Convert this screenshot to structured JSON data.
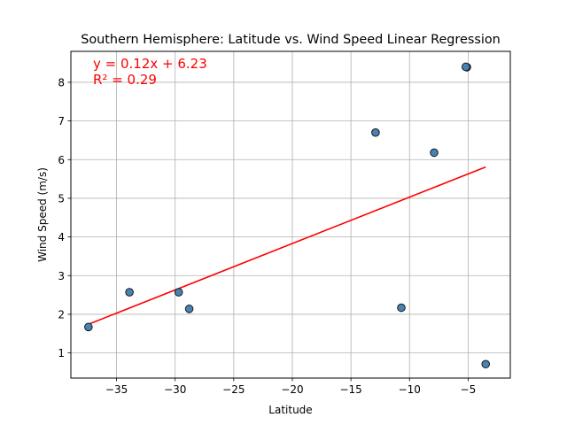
{
  "chart_data": {
    "type": "scatter",
    "title": "Southern Hemisphere: Latitude vs. Wind Speed Linear Regression",
    "xlabel": "Latitude",
    "ylabel": "Wind Speed (m/s)",
    "xlim": [
      -38.9,
      -1.4
    ],
    "ylim": [
      0.35,
      8.8
    ],
    "xticks": [
      -35,
      -30,
      -25,
      -20,
      -15,
      -10,
      -5
    ],
    "xtick_labels": [
      "−35",
      "−30",
      "−25",
      "−20",
      "−15",
      "−10",
      "−5"
    ],
    "yticks": [
      1,
      2,
      3,
      4,
      5,
      6,
      7,
      8
    ],
    "ytick_labels": [
      "1",
      "2",
      "3",
      "4",
      "5",
      "6",
      "7",
      "8"
    ],
    "grid": true,
    "points": [
      {
        "x": -37.4,
        "y": 1.67
      },
      {
        "x": -33.9,
        "y": 2.57
      },
      {
        "x": -29.7,
        "y": 2.57
      },
      {
        "x": -28.8,
        "y": 2.14
      },
      {
        "x": -12.9,
        "y": 6.7
      },
      {
        "x": -10.7,
        "y": 2.17
      },
      {
        "x": -7.9,
        "y": 6.18
      },
      {
        "x": -5.1,
        "y": 8.39
      },
      {
        "x": -5.2,
        "y": 8.4
      },
      {
        "x": -3.5,
        "y": 0.71
      }
    ],
    "regression": {
      "slope": 0.12,
      "intercept": 6.23,
      "x_range": [
        -37.4,
        -3.5
      ],
      "equation_label": "y = 0.12x + 6.23",
      "r2_label": "R² = 0.29",
      "color": "#ff0000"
    },
    "point_fill": "#4682b4",
    "point_edge": "#1a1a1a"
  }
}
